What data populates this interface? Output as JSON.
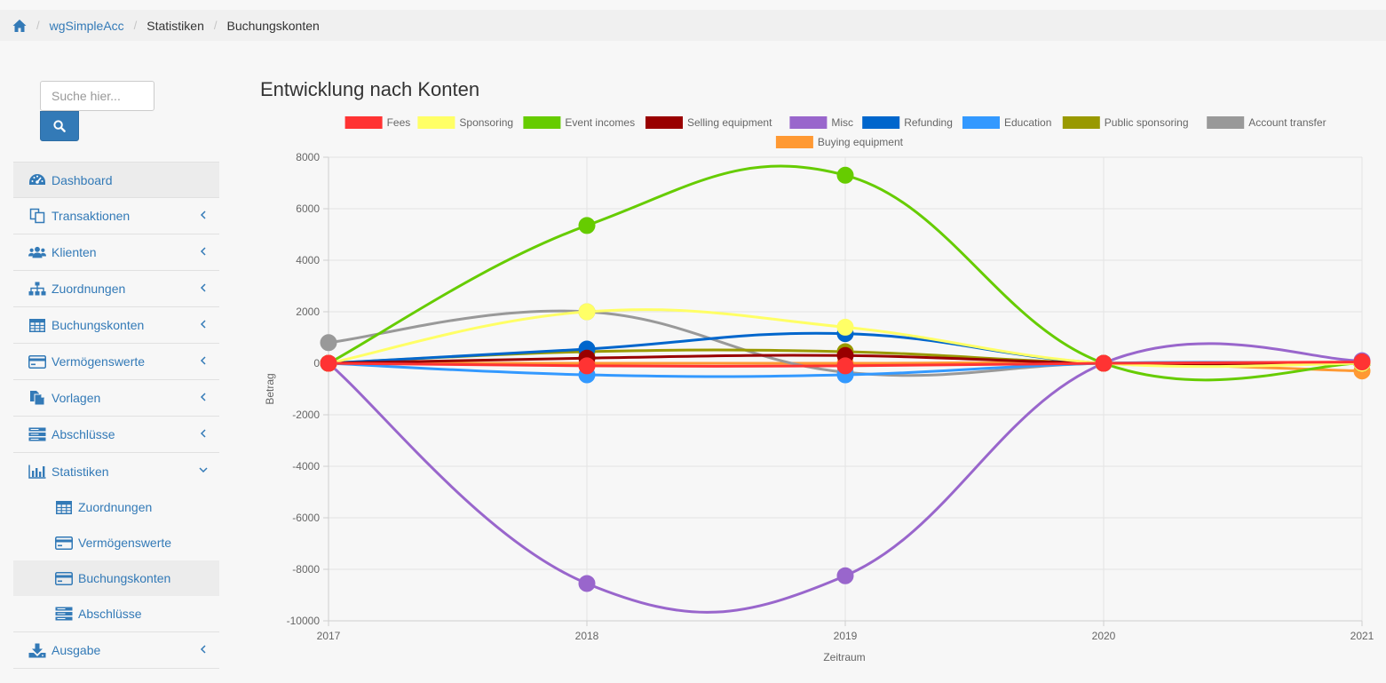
{
  "breadcrumb": {
    "home_icon": "home-icon",
    "items": [
      "wgSimpleAcc",
      "Statistiken",
      "Buchungskonten"
    ]
  },
  "search": {
    "placeholder": "Suche hier...",
    "button_icon": "search-icon"
  },
  "sidebar": {
    "items": [
      {
        "label": "Dashboard",
        "icon": "dashboard-icon"
      },
      {
        "label": "Transaktionen",
        "icon": "copy-icon"
      },
      {
        "label": "Klienten",
        "icon": "users-icon"
      },
      {
        "label": "Zuordnungen",
        "icon": "sitemap-icon"
      },
      {
        "label": "Buchungskonten",
        "icon": "table-icon"
      },
      {
        "label": "Vermögenswerte",
        "icon": "credit-card-icon"
      },
      {
        "label": "Vorlagen",
        "icon": "file-icon"
      },
      {
        "label": "Abschlüsse",
        "icon": "server-icon"
      },
      {
        "label": "Statistiken",
        "icon": "bar-chart-icon"
      },
      {
        "label": "Ausgabe",
        "icon": "download-icon"
      }
    ],
    "statistiken_sub": [
      {
        "label": "Zuordnungen",
        "icon": "table-icon"
      },
      {
        "label": "Vermögenswerte",
        "icon": "credit-card-icon"
      },
      {
        "label": "Buchungskonten",
        "icon": "credit-card-icon"
      },
      {
        "label": "Abschlüsse",
        "icon": "server-icon"
      }
    ]
  },
  "main": {
    "title": "Entwicklung nach Konten"
  },
  "chart_data": {
    "type": "line",
    "title": "",
    "xlabel": "Zeitraum",
    "ylabel": "Betrag",
    "x": [
      "2017",
      "2018",
      "2019",
      "2020",
      "2021"
    ],
    "ylim": [
      -10000,
      8000
    ],
    "yticks": [
      8000,
      6000,
      4000,
      2000,
      0,
      -2000,
      -4000,
      -6000,
      -8000,
      -10000
    ],
    "grid": true,
    "legend_position": "top",
    "series": [
      {
        "name": "Fees",
        "color": "#ff3333",
        "values": [
          0,
          -100,
          -100,
          0,
          50
        ]
      },
      {
        "name": "Sponsoring",
        "color": "#ffff66",
        "values": [
          0,
          2000,
          1400,
          0,
          0
        ]
      },
      {
        "name": "Event incomes",
        "color": "#66cc00",
        "values": [
          0,
          5350,
          7300,
          0,
          0
        ]
      },
      {
        "name": "Selling equipment",
        "color": "#990000",
        "values": [
          0,
          200,
          300,
          0,
          0
        ]
      },
      {
        "name": "Misc",
        "color": "#9966cc",
        "values": [
          0,
          -8550,
          -8250,
          0,
          100
        ]
      },
      {
        "name": "Refunding",
        "color": "#0066cc",
        "values": [
          0,
          550,
          1150,
          0,
          0
        ]
      },
      {
        "name": "Education",
        "color": "#3399ff",
        "values": [
          0,
          -450,
          -450,
          0,
          0
        ]
      },
      {
        "name": "Public sponsoring",
        "color": "#999900",
        "values": [
          0,
          450,
          450,
          0,
          0
        ]
      },
      {
        "name": "Account transfer",
        "color": "#999999",
        "values": [
          800,
          2000,
          -350,
          0,
          0
        ]
      },
      {
        "name": "Buying equipment",
        "color": "#ff9933",
        "values": [
          0,
          0,
          0,
          0,
          -300
        ]
      }
    ]
  }
}
